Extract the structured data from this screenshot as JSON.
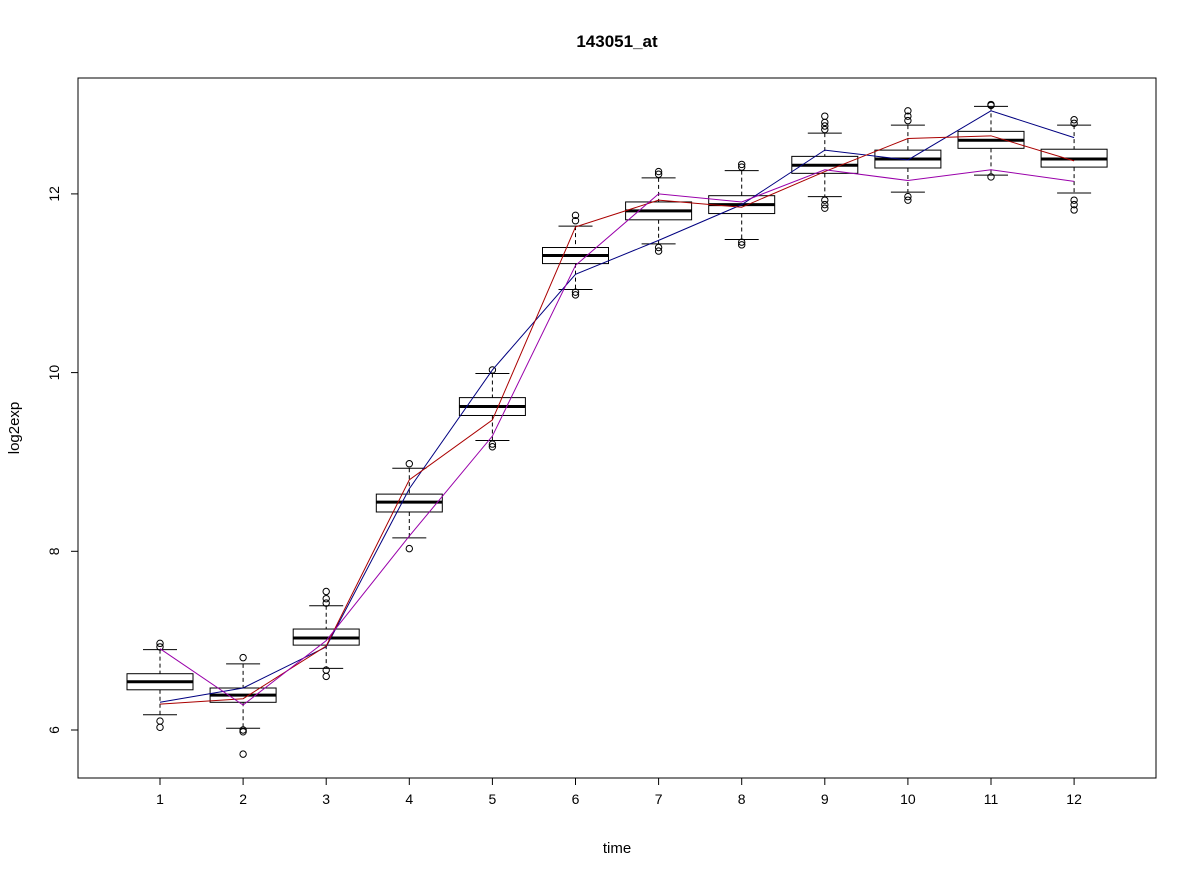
{
  "chart_data": {
    "type": "boxplot",
    "title": "143051_at",
    "xlabel": "time",
    "ylabel": "log2exp",
    "categories": [
      "1",
      "2",
      "3",
      "4",
      "5",
      "6",
      "7",
      "8",
      "9",
      "10",
      "11",
      "12"
    ],
    "ylim": [
      5.45,
      13.3
    ],
    "yticks": [
      6,
      8,
      10,
      12
    ],
    "ytick_labels": [
      "6",
      "8",
      "10",
      "12"
    ],
    "grid": false,
    "legend": "none",
    "boxes": [
      {
        "category": "1",
        "whisker_low": 6.17,
        "q1": 6.45,
        "median": 6.54,
        "q3": 6.63,
        "whisker_high": 6.9,
        "outliers": [
          6.03,
          6.1,
          6.93,
          6.97
        ]
      },
      {
        "category": "2",
        "whisker_low": 6.02,
        "q1": 6.31,
        "median": 6.39,
        "q3": 6.47,
        "whisker_high": 6.74,
        "outliers": [
          5.73,
          5.98,
          6.0,
          6.81
        ]
      },
      {
        "category": "3",
        "whisker_low": 6.69,
        "q1": 6.95,
        "median": 7.03,
        "q3": 7.13,
        "whisker_high": 7.39,
        "outliers": [
          6.6,
          6.67,
          7.42,
          7.47,
          7.55
        ]
      },
      {
        "category": "4",
        "whisker_low": 8.15,
        "q1": 8.44,
        "median": 8.55,
        "q3": 8.64,
        "whisker_high": 8.93,
        "outliers": [
          8.03,
          8.98
        ]
      },
      {
        "category": "5",
        "whisker_low": 9.24,
        "q1": 9.52,
        "median": 9.62,
        "q3": 9.72,
        "whisker_high": 9.99,
        "outliers": [
          9.17,
          9.2,
          10.03
        ]
      },
      {
        "category": "6",
        "whisker_low": 10.93,
        "q1": 11.22,
        "median": 11.31,
        "q3": 11.4,
        "whisker_high": 11.64,
        "outliers": [
          10.87,
          10.9,
          11.7,
          11.76
        ]
      },
      {
        "category": "7",
        "whisker_low": 11.44,
        "q1": 11.71,
        "median": 11.81,
        "q3": 11.91,
        "whisker_high": 12.18,
        "outliers": [
          11.36,
          11.4,
          12.22,
          12.25
        ]
      },
      {
        "category": "8",
        "whisker_low": 11.49,
        "q1": 11.78,
        "median": 11.88,
        "q3": 11.98,
        "whisker_high": 12.26,
        "outliers": [
          11.43,
          11.46,
          12.3,
          12.33
        ]
      },
      {
        "category": "9",
        "whisker_low": 11.97,
        "q1": 12.23,
        "median": 12.32,
        "q3": 12.42,
        "whisker_high": 12.68,
        "outliers": [
          11.84,
          11.88,
          11.93,
          12.72,
          12.76,
          12.8,
          12.87
        ]
      },
      {
        "category": "10",
        "whisker_low": 12.02,
        "q1": 12.29,
        "median": 12.39,
        "q3": 12.49,
        "whisker_high": 12.77,
        "outliers": [
          11.93,
          11.97,
          12.82,
          12.87,
          12.93
        ]
      },
      {
        "category": "11",
        "whisker_low": 12.21,
        "q1": 12.51,
        "median": 12.6,
        "q3": 12.7,
        "whisker_high": 12.98,
        "outliers": [
          12.19,
          12.99,
          13.0
        ]
      },
      {
        "category": "12",
        "whisker_low": 12.01,
        "q1": 12.3,
        "median": 12.39,
        "q3": 12.5,
        "whisker_high": 12.77,
        "outliers": [
          11.82,
          11.88,
          11.93,
          12.79,
          12.83
        ]
      }
    ],
    "series": [
      {
        "color": "#000080",
        "values": [
          6.31,
          6.47,
          6.93,
          8.7,
          10.03,
          11.1,
          11.48,
          11.88,
          12.49,
          12.38,
          12.93,
          12.63
        ]
      },
      {
        "color": "#aa0000",
        "values": [
          6.29,
          6.35,
          6.94,
          8.8,
          9.47,
          11.63,
          11.93,
          11.85,
          12.25,
          12.62,
          12.65,
          12.37
        ]
      },
      {
        "color": "#9900aa",
        "values": [
          6.91,
          6.28,
          7.0,
          8.17,
          9.29,
          11.2,
          12.0,
          11.91,
          12.27,
          12.15,
          12.27,
          12.14
        ]
      }
    ]
  }
}
